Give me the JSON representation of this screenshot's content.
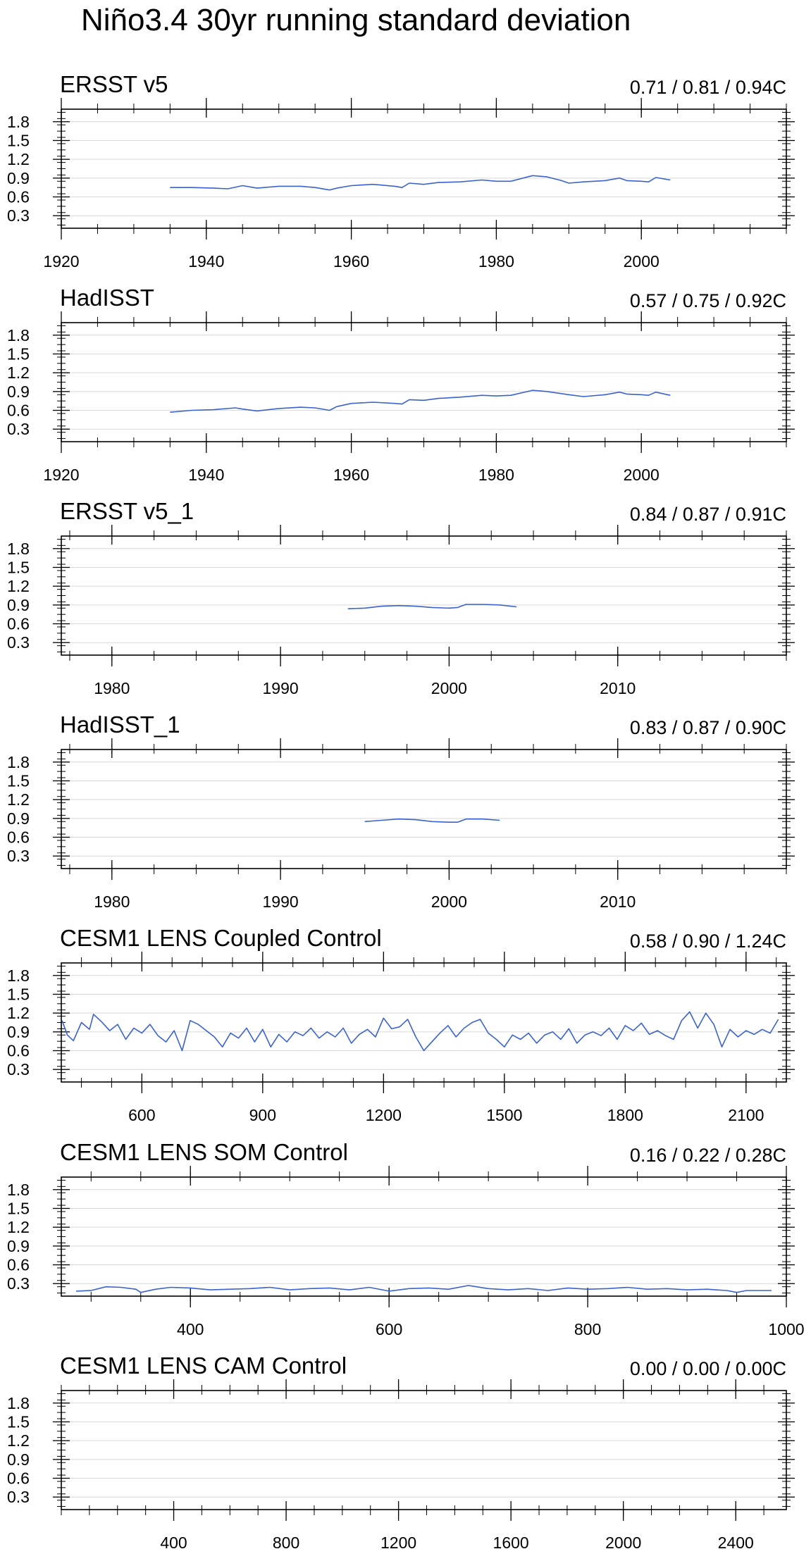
{
  "title": "Niño3.4 30yr running standard deviation",
  "colors": {
    "line": "#3a62d0",
    "frame": "#000000",
    "grid": "#d9d9d9"
  },
  "y_ticks": [
    "0.3",
    "0.6",
    "0.9",
    "1.2",
    "1.5",
    "1.8"
  ],
  "chart_data": [
    {
      "type": "line",
      "title": "ERSST v5",
      "stats": "0.71 / 0.81 / 0.94C",
      "ylim": [
        0.1,
        2.0
      ],
      "xlim": [
        1920,
        2020
      ],
      "xticks": [
        1920,
        1940,
        1960,
        1980,
        2000
      ],
      "x": [
        1935,
        1938,
        1941,
        1943,
        1945,
        1947,
        1950,
        1953,
        1955,
        1957,
        1958,
        1960,
        1963,
        1966,
        1967,
        1968,
        1970,
        1972,
        1975,
        1978,
        1980,
        1982,
        1985,
        1987,
        1989,
        1990,
        1992,
        1995,
        1997,
        1998,
        2000,
        2001,
        2002,
        2004
      ],
      "y": [
        0.75,
        0.75,
        0.74,
        0.73,
        0.78,
        0.74,
        0.77,
        0.77,
        0.75,
        0.71,
        0.74,
        0.78,
        0.8,
        0.77,
        0.75,
        0.82,
        0.8,
        0.83,
        0.84,
        0.87,
        0.85,
        0.85,
        0.94,
        0.92,
        0.86,
        0.82,
        0.84,
        0.86,
        0.9,
        0.86,
        0.85,
        0.84,
        0.91,
        0.87
      ]
    },
    {
      "type": "line",
      "title": "HadISST",
      "stats": "0.57 / 0.75 / 0.92C",
      "ylim": [
        0.1,
        2.0
      ],
      "xlim": [
        1920,
        2020
      ],
      "xticks": [
        1920,
        1940,
        1960,
        1980,
        2000
      ],
      "x": [
        1935,
        1938,
        1941,
        1944,
        1945,
        1947,
        1950,
        1953,
        1955,
        1957,
        1958,
        1960,
        1963,
        1966,
        1967,
        1968,
        1970,
        1972,
        1975,
        1978,
        1980,
        1982,
        1985,
        1987,
        1990,
        1992,
        1995,
        1997,
        1998,
        2000,
        2001,
        2002,
        2004
      ],
      "y": [
        0.57,
        0.6,
        0.61,
        0.64,
        0.62,
        0.59,
        0.63,
        0.65,
        0.64,
        0.6,
        0.66,
        0.71,
        0.73,
        0.71,
        0.7,
        0.77,
        0.76,
        0.79,
        0.81,
        0.84,
        0.83,
        0.84,
        0.92,
        0.9,
        0.85,
        0.82,
        0.85,
        0.89,
        0.86,
        0.85,
        0.84,
        0.89,
        0.84
      ]
    },
    {
      "type": "line",
      "title": "ERSST v5_1",
      "stats": "0.84 / 0.87 / 0.91C",
      "ylim": [
        0.1,
        2.0
      ],
      "xlim": [
        1977,
        2020
      ],
      "xticks": [
        1980,
        1990,
        2000,
        2010
      ],
      "x": [
        1994,
        1995,
        1996,
        1997,
        1998,
        1999,
        2000,
        2000.5,
        2001,
        2002,
        2003,
        2004
      ],
      "y": [
        0.84,
        0.85,
        0.88,
        0.89,
        0.88,
        0.86,
        0.85,
        0.86,
        0.91,
        0.91,
        0.9,
        0.87
      ]
    },
    {
      "type": "line",
      "title": "HadISST_1",
      "stats": "0.83 / 0.87 / 0.90C",
      "ylim": [
        0.1,
        2.0
      ],
      "xlim": [
        1977,
        2020
      ],
      "xticks": [
        1980,
        1990,
        2000,
        2010
      ],
      "x": [
        1995,
        1996,
        1997,
        1998,
        1999,
        2000,
        2000.5,
        2001,
        2002,
        2003
      ],
      "y": [
        0.85,
        0.87,
        0.89,
        0.88,
        0.85,
        0.84,
        0.84,
        0.89,
        0.89,
        0.87
      ]
    },
    {
      "type": "line",
      "title": "CESM1 LENS Coupled Control",
      "stats": "0.58 / 0.90 / 1.24C",
      "ylim": [
        0.1,
        2.0
      ],
      "xlim": [
        400,
        2200
      ],
      "xticks": [
        600,
        900,
        1200,
        1500,
        1800,
        2100
      ],
      "x": [
        402,
        415,
        430,
        450,
        470,
        480,
        500,
        520,
        540,
        560,
        580,
        600,
        620,
        640,
        660,
        680,
        700,
        720,
        740,
        760,
        780,
        800,
        820,
        840,
        860,
        880,
        900,
        920,
        940,
        960,
        980,
        1000,
        1020,
        1040,
        1060,
        1080,
        1100,
        1120,
        1140,
        1160,
        1180,
        1200,
        1220,
        1240,
        1260,
        1280,
        1300,
        1320,
        1340,
        1360,
        1380,
        1400,
        1420,
        1440,
        1460,
        1480,
        1500,
        1520,
        1540,
        1560,
        1580,
        1600,
        1620,
        1640,
        1660,
        1680,
        1700,
        1720,
        1740,
        1760,
        1780,
        1800,
        1820,
        1840,
        1860,
        1880,
        1900,
        1920,
        1940,
        1960,
        1980,
        2000,
        2020,
        2040,
        2060,
        2080,
        2100,
        2120,
        2140,
        2160,
        2180
      ],
      "y": [
        1.08,
        0.85,
        0.76,
        1.05,
        0.94,
        1.18,
        1.06,
        0.92,
        1.02,
        0.78,
        0.96,
        0.88,
        1.02,
        0.84,
        0.74,
        0.92,
        0.6,
        1.08,
        1.02,
        0.92,
        0.82,
        0.66,
        0.88,
        0.8,
        0.96,
        0.74,
        0.94,
        0.66,
        0.86,
        0.74,
        0.9,
        0.84,
        0.96,
        0.8,
        0.9,
        0.82,
        0.96,
        0.72,
        0.86,
        0.94,
        0.82,
        1.12,
        0.95,
        0.98,
        1.1,
        0.82,
        0.6,
        0.74,
        0.88,
        1.0,
        0.82,
        0.96,
        1.05,
        1.1,
        0.88,
        0.78,
        0.66,
        0.85,
        0.78,
        0.88,
        0.72,
        0.85,
        0.9,
        0.78,
        0.95,
        0.72,
        0.85,
        0.9,
        0.84,
        0.96,
        0.78,
        1.0,
        0.92,
        1.04,
        0.86,
        0.92,
        0.84,
        0.78,
        1.08,
        1.22,
        0.96,
        1.2,
        1.02,
        0.66,
        0.94,
        0.82,
        0.92,
        0.86,
        0.94,
        0.88,
        1.1
      ]
    },
    {
      "type": "line",
      "title": "CESM1 LENS SOM Control",
      "stats": "0.16 / 0.22 / 0.28C",
      "ylim": [
        0.1,
        2.0
      ],
      "xlim": [
        270,
        1000
      ],
      "xticks": [
        400,
        600,
        800,
        1000
      ],
      "x": [
        285,
        300,
        315,
        330,
        345,
        350,
        365,
        380,
        400,
        420,
        440,
        460,
        480,
        500,
        520,
        540,
        560,
        580,
        600,
        620,
        640,
        660,
        680,
        700,
        720,
        740,
        760,
        780,
        800,
        820,
        840,
        860,
        880,
        900,
        920,
        940,
        950,
        960,
        985
      ],
      "y": [
        0.18,
        0.19,
        0.25,
        0.24,
        0.21,
        0.16,
        0.21,
        0.24,
        0.23,
        0.2,
        0.21,
        0.22,
        0.24,
        0.2,
        0.22,
        0.23,
        0.2,
        0.24,
        0.18,
        0.22,
        0.23,
        0.21,
        0.27,
        0.22,
        0.2,
        0.22,
        0.19,
        0.23,
        0.21,
        0.22,
        0.24,
        0.21,
        0.22,
        0.2,
        0.21,
        0.19,
        0.16,
        0.19,
        0.19
      ]
    },
    {
      "type": "line",
      "title": "CESM1 LENS CAM Control",
      "stats": "0.00 / 0.00 / 0.00C",
      "ylim": [
        0.1,
        2.0
      ],
      "xlim": [
        0,
        2580
      ],
      "xticks": [
        400,
        800,
        1200,
        1600,
        2000,
        2400
      ],
      "x": [],
      "y": []
    }
  ]
}
